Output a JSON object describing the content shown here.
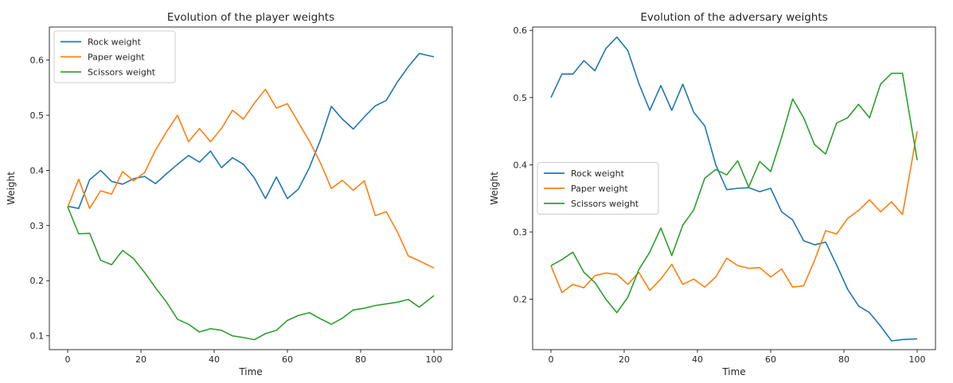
{
  "chart_data": [
    {
      "type": "line",
      "title": "Evolution of the player weights",
      "xlabel": "Time",
      "ylabel": "Weight",
      "xlim": [
        -5,
        105
      ],
      "ylim": [
        0.075,
        0.66
      ],
      "xticks": [
        "0",
        "20",
        "40",
        "60",
        "80",
        "100"
      ],
      "yticks": [
        "0.1",
        "0.2",
        "0.3",
        "0.4",
        "0.5",
        "0.6"
      ],
      "legend_position": "top-left",
      "x": [
        0,
        3,
        6,
        9,
        12,
        15,
        18,
        21,
        24,
        27,
        30,
        33,
        36,
        39,
        42,
        45,
        48,
        51,
        54,
        57,
        60,
        63,
        66,
        69,
        72,
        75,
        78,
        81,
        84,
        87,
        90,
        93,
        96,
        100
      ],
      "series": [
        {
          "name": "Rock weight",
          "color": "#1f77b4",
          "values": [
            0.335,
            0.331,
            0.383,
            0.4,
            0.38,
            0.375,
            0.385,
            0.389,
            0.376,
            0.394,
            0.411,
            0.427,
            0.415,
            0.435,
            0.405,
            0.423,
            0.411,
            0.386,
            0.349,
            0.388,
            0.349,
            0.366,
            0.405,
            0.455,
            0.516,
            0.493,
            0.475,
            0.497,
            0.517,
            0.527,
            0.56,
            0.588,
            0.612,
            0.606
          ]
        },
        {
          "name": "Paper weight",
          "color": "#ff7f0e",
          "values": [
            0.333,
            0.384,
            0.331,
            0.363,
            0.357,
            0.398,
            0.381,
            0.396,
            0.437,
            0.47,
            0.5,
            0.452,
            0.476,
            0.452,
            0.476,
            0.509,
            0.493,
            0.522,
            0.547,
            0.513,
            0.521,
            0.487,
            0.453,
            0.414,
            0.367,
            0.382,
            0.364,
            0.381,
            0.318,
            0.325,
            0.289,
            0.245,
            0.236,
            0.223
          ]
        },
        {
          "name": "Scissors weight",
          "color": "#2ca02c",
          "values": [
            0.334,
            0.285,
            0.286,
            0.237,
            0.229,
            0.255,
            0.24,
            0.215,
            0.187,
            0.161,
            0.13,
            0.121,
            0.107,
            0.113,
            0.11,
            0.1,
            0.097,
            0.093,
            0.104,
            0.11,
            0.128,
            0.137,
            0.142,
            0.131,
            0.121,
            0.132,
            0.147,
            0.15,
            0.155,
            0.158,
            0.161,
            0.166,
            0.152,
            0.173
          ]
        }
      ]
    },
    {
      "type": "line",
      "title": "Evolution of the adversary weights",
      "xlabel": "Time",
      "ylabel": "Weight",
      "xlim": [
        -5,
        105
      ],
      "ylim": [
        0.125,
        0.605
      ],
      "xticks": [
        "0",
        "20",
        "40",
        "60",
        "80",
        "100"
      ],
      "yticks": [
        "0.2",
        "0.3",
        "0.4",
        "0.5",
        "0.6"
      ],
      "legend_position": "center-left",
      "x": [
        0,
        3,
        6,
        9,
        12,
        15,
        18,
        21,
        24,
        27,
        30,
        33,
        36,
        39,
        42,
        45,
        48,
        51,
        54,
        57,
        60,
        63,
        66,
        69,
        72,
        75,
        78,
        81,
        84,
        87,
        90,
        93,
        96,
        100
      ],
      "series": [
        {
          "name": "Rock weight",
          "color": "#1f77b4",
          "values": [
            0.5,
            0.535,
            0.535,
            0.555,
            0.54,
            0.573,
            0.59,
            0.57,
            0.521,
            0.481,
            0.518,
            0.481,
            0.52,
            0.478,
            0.458,
            0.4,
            0.363,
            0.365,
            0.366,
            0.36,
            0.365,
            0.33,
            0.318,
            0.287,
            0.281,
            0.285,
            0.251,
            0.215,
            0.19,
            0.18,
            0.16,
            0.138,
            0.14,
            0.141
          ]
        },
        {
          "name": "Paper weight",
          "color": "#ff7f0e",
          "values": [
            0.25,
            0.21,
            0.222,
            0.217,
            0.235,
            0.239,
            0.237,
            0.222,
            0.24,
            0.213,
            0.23,
            0.252,
            0.222,
            0.23,
            0.218,
            0.233,
            0.261,
            0.25,
            0.246,
            0.247,
            0.233,
            0.245,
            0.218,
            0.22,
            0.258,
            0.302,
            0.297,
            0.32,
            0.332,
            0.348,
            0.33,
            0.345,
            0.326,
            0.45
          ]
        },
        {
          "name": "Scissors weight",
          "color": "#2ca02c",
          "values": [
            0.25,
            0.259,
            0.27,
            0.24,
            0.225,
            0.2,
            0.18,
            0.203,
            0.244,
            0.27,
            0.306,
            0.265,
            0.31,
            0.333,
            0.38,
            0.393,
            0.385,
            0.406,
            0.367,
            0.405,
            0.39,
            0.441,
            0.498,
            0.47,
            0.43,
            0.416,
            0.462,
            0.47,
            0.49,
            0.47,
            0.52,
            0.536,
            0.536,
            0.407
          ]
        }
      ]
    }
  ]
}
